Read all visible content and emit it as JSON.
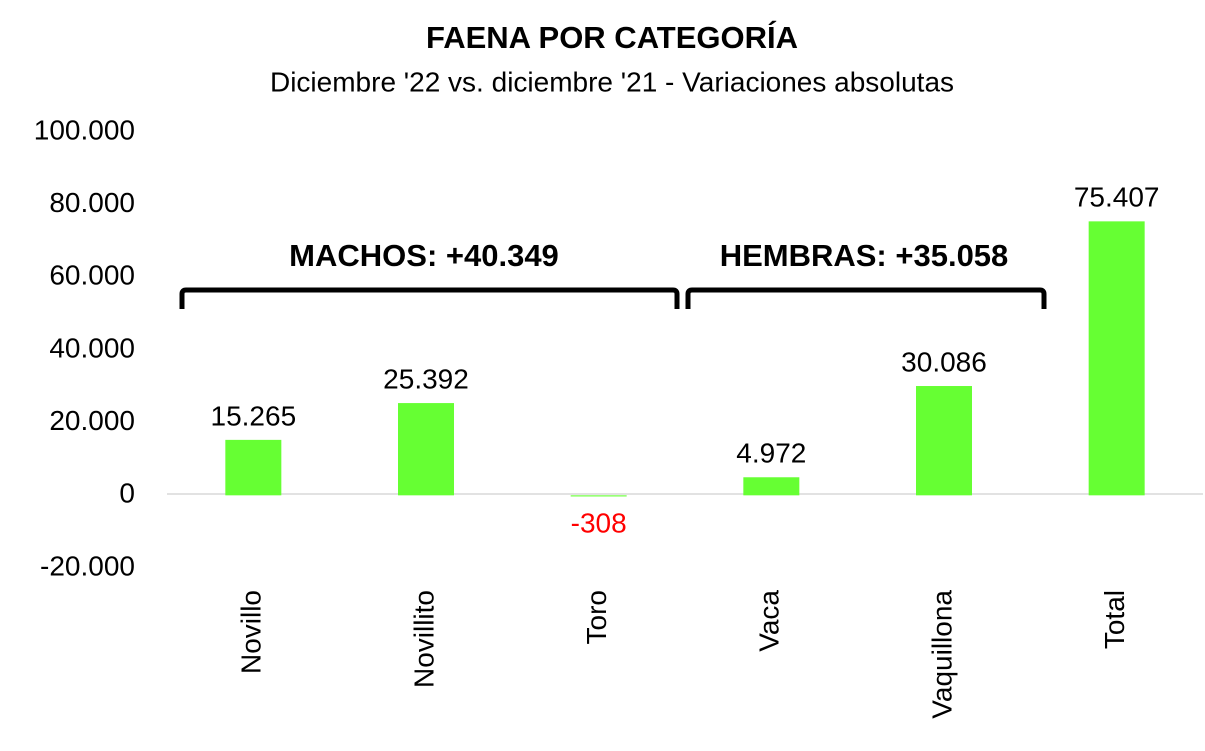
{
  "chart_data": {
    "type": "bar",
    "title": "FAENA POR CATEGORÍA",
    "subtitle": "Diciembre '22 vs. diciembre '21 - Variaciones absolutas",
    "categories": [
      "Novillo",
      "Novillito",
      "Toro",
      "Vaca",
      "Vaquillona",
      "Total"
    ],
    "values": [
      15265,
      25392,
      -308,
      4972,
      30086,
      75407
    ],
    "value_labels": [
      "15.265",
      "25.392",
      "-308",
      "4.972",
      "30.086",
      "75.407"
    ],
    "color": "#66ff33",
    "negative_label_color": "#ff0000",
    "ylim": [
      -20000,
      100000
    ],
    "yticks": [
      {
        "value": -20000,
        "label": "-20.000"
      },
      0,
      {
        "value": 20000,
        "label": "20.000"
      },
      {
        "value": 40000,
        "label": "40.000"
      },
      {
        "value": 60000,
        "label": "60.000"
      },
      {
        "value": 80000,
        "label": "80.000"
      },
      {
        "value": 100000,
        "label": "100.000"
      }
    ],
    "grid": false,
    "annotations": [
      "MACHOS: +40.349",
      "HEMBRAS: +35.058"
    ]
  }
}
